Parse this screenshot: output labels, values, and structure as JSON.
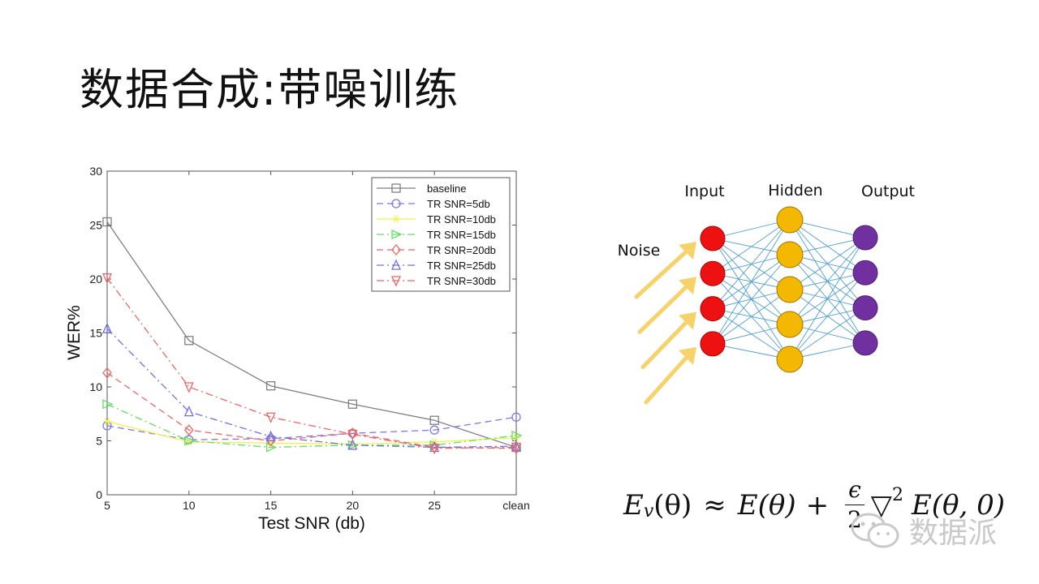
{
  "slide": {
    "title": "数据合成:带噪训练"
  },
  "chart_data": {
    "type": "line",
    "categories": [
      "5",
      "10",
      "15",
      "20",
      "25",
      "clean"
    ],
    "xlabel": "Test SNR (db)",
    "ylabel": "WER%",
    "ylim": [
      0,
      30
    ],
    "yticks": [
      0,
      5,
      10,
      15,
      20,
      25,
      30
    ],
    "grid": false,
    "legend_position": "top-right",
    "series": [
      {
        "name": "baseline",
        "color": "#808080",
        "marker": "square",
        "dash": "solid",
        "values": [
          25.3,
          14.3,
          10.1,
          8.4,
          6.9,
          4.4
        ]
      },
      {
        "name": "TR SNR=5db",
        "color": "#7a7aee",
        "marker": "circle",
        "dash": "dashed",
        "values": [
          6.4,
          5.1,
          5.2,
          5.7,
          6.0,
          7.2
        ]
      },
      {
        "name": "TR SNR=10db",
        "color": "#f2f24a",
        "marker": "star",
        "dash": "solid",
        "values": [
          6.8,
          4.9,
          4.8,
          4.7,
          4.9,
          5.3
        ]
      },
      {
        "name": "TR SNR=15db",
        "color": "#66dd66",
        "marker": "triangle-right",
        "dash": "dashdot",
        "values": [
          8.4,
          5.0,
          4.4,
          4.6,
          4.6,
          5.5
        ]
      },
      {
        "name": "TR SNR=20db",
        "color": "#ee6666",
        "marker": "diamond",
        "dash": "dashed",
        "values": [
          11.3,
          6.0,
          5.0,
          5.7,
          4.4,
          4.3
        ]
      },
      {
        "name": "TR SNR=25db",
        "color": "#7070ee",
        "marker": "triangle-up",
        "dash": "dashdot",
        "values": [
          15.4,
          7.7,
          5.4,
          4.6,
          4.4,
          4.5
        ]
      },
      {
        "name": "TR SNR=30db",
        "color": "#ee6666",
        "marker": "triangle-down",
        "dash": "dashdot",
        "values": [
          20.1,
          10.0,
          7.2,
          5.6,
          4.3,
          4.4
        ]
      }
    ]
  },
  "network": {
    "input_label": "Input",
    "hidden_label": "Hidden",
    "output_label": "Output",
    "noise_label": "Noise",
    "input_color": "#ee1111",
    "hidden_color": "#f5b800",
    "output_color": "#7030a0",
    "edge_color": "#4f9fd0",
    "arrow_color": "#f6d36a",
    "input_nodes": 4,
    "hidden_nodes": 5,
    "output_nodes": 4
  },
  "formula": {
    "lhs_E": "E",
    "lhs_sub": "v",
    "lhs_arg": "(θ)",
    "approx": "≈",
    "term1": "E(θ)",
    "plus": "+",
    "frac_num": "ϵ",
    "frac_den": "2",
    "nabla": "▽",
    "nabla_sup": "2",
    "term2": "E(θ, 0)"
  },
  "watermark": {
    "icon": "wechat-icon",
    "text": "数据派"
  }
}
